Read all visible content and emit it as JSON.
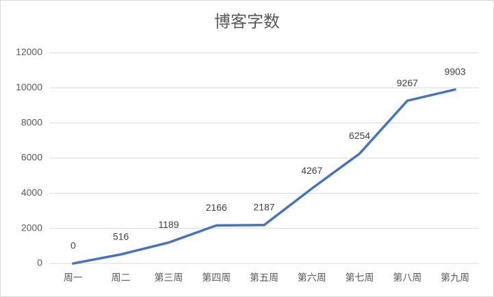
{
  "chart_data": {
    "type": "line",
    "title": "博客字数",
    "categories": [
      "周一",
      "周二",
      "第三周",
      "第四周",
      "第五周",
      "第六周",
      "第七周",
      "第八周",
      "第九周"
    ],
    "series": [
      {
        "name": "博客字数",
        "color": "#4472c4",
        "values": [
          0,
          516,
          1189,
          2166,
          2187,
          4267,
          6254,
          9267,
          9903
        ]
      }
    ],
    "ylim": [
      0,
      12000
    ],
    "yticks": [
      0,
      2000,
      4000,
      6000,
      8000,
      10000,
      12000
    ],
    "grid": true
  }
}
